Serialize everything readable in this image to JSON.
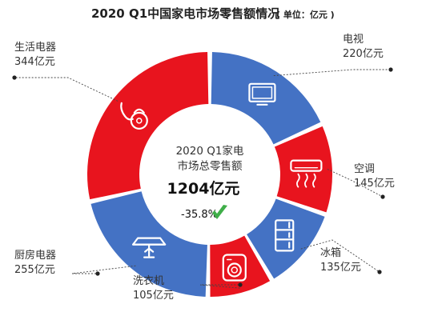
{
  "chart_data": {
    "type": "pie",
    "title": "2020 Q1中国家电市场零售额情况",
    "unit_label": "( 单位：亿元 )",
    "categories": [
      "电视",
      "空调",
      "冰箱",
      "洗衣机",
      "厨房电器",
      "生活电器"
    ],
    "values": [
      220,
      145,
      135,
      105,
      255,
      344
    ],
    "value_labels": [
      "220亿元",
      "145亿元",
      "135亿元",
      "105亿元",
      "255亿元",
      "344亿元"
    ],
    "colors": [
      "#4472C4",
      "#E8141E",
      "#4472C4",
      "#E8141E",
      "#4472C4",
      "#E8141E"
    ],
    "icons": [
      "tv-icon",
      "air-conditioner-icon",
      "fridge-icon",
      "washer-icon",
      "range-hood-icon",
      "vacuum-icon"
    ],
    "center": {
      "line1": "2020 Q1家电",
      "line2": "市场总零售额",
      "total": "1204亿元",
      "change": "-35.8%"
    }
  }
}
